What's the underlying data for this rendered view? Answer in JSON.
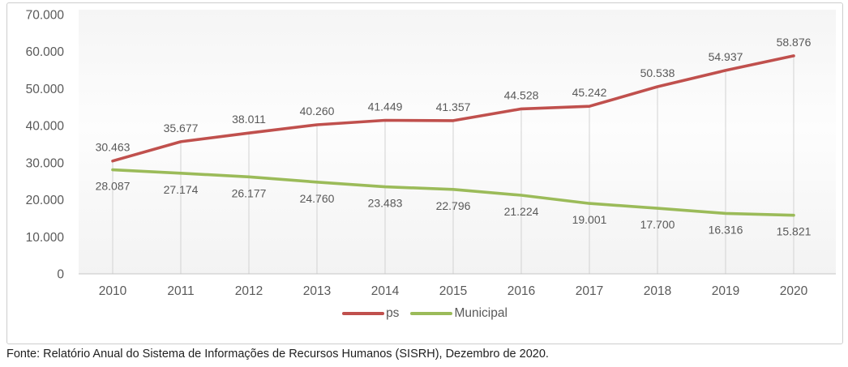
{
  "chart": {
    "y_axis": {
      "tick_labels": [
        "70.000",
        "60.000",
        "50.000",
        "40.000",
        "30.000",
        "20.000",
        "10.000",
        "0"
      ]
    },
    "x_axis": {
      "tick_labels": [
        "2010",
        "2011",
        "2012",
        "2013",
        "2014",
        "2015",
        "2016",
        "2017",
        "2018",
        "2019",
        "2020"
      ]
    },
    "footer": "Fonte: Relatório Anual do Sistema de Informações de Recursos Humanos (SISRH), Dezembro de 2020.",
    "colors": {
      "series_red": "#c0504d",
      "series_green": "#9bbb59",
      "grid": "#d2d2d2",
      "axis": "#c6c6c6",
      "text": "#595959"
    }
  },
  "chart_data": {
    "type": "line",
    "title": "",
    "xlabel": "",
    "ylabel": "",
    "categories": [
      "2010",
      "2011",
      "2012",
      "2013",
      "2014",
      "2015",
      "2016",
      "2017",
      "2018",
      "2019",
      "2020"
    ],
    "series": [
      {
        "name": "ps",
        "color": "#c0504d",
        "values": [
          30463,
          35677,
          38011,
          40260,
          41449,
          41357,
          44528,
          45242,
          50538,
          54937,
          58876
        ],
        "labels": [
          "30.463",
          "35.677",
          "38.011",
          "40.260",
          "41.449",
          "41.357",
          "44.528",
          "45.242",
          "50.538",
          "54.937",
          "58.876"
        ],
        "label_position": "above"
      },
      {
        "name": "Municipal",
        "color": "#9bbb59",
        "values": [
          28087,
          27174,
          26177,
          24760,
          23483,
          22796,
          21224,
          19001,
          17700,
          16316,
          15821
        ],
        "labels": [
          "28.087",
          "27.174",
          "26.177",
          "24.760",
          "23.483",
          "22.796",
          "21.224",
          "19.001",
          "17.700",
          "16.316",
          "15.821"
        ],
        "label_position": "below"
      }
    ],
    "ylim": [
      0,
      70000
    ],
    "y_tick_interval": 10000,
    "grid": "vertical-drop-lines",
    "legend_position": "bottom"
  }
}
